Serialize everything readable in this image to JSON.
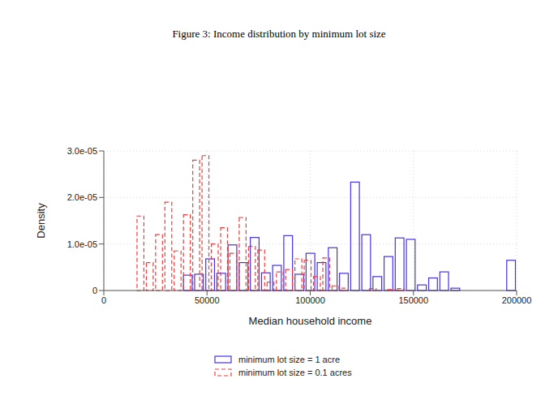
{
  "chart_data": {
    "type": "histogram",
    "title": "Figure 3: Income distribution by minimum lot size",
    "x_label": "Median household income",
    "y_label": "Density",
    "series": [
      {
        "name": "minimum lot size = 1 acre",
        "color": "#4633e0",
        "line_style": "solid",
        "bins": [
          38000,
          43400,
          48800,
          54200,
          59600,
          65000,
          70400,
          75800,
          81200,
          86600,
          92000,
          97400,
          102800,
          108200,
          113600,
          119000,
          124400,
          129800,
          135200,
          140600,
          146000,
          151400,
          156800,
          162200,
          167600,
          173000,
          178400,
          183800,
          189200,
          194600,
          200000
        ],
        "values": [
          3.3e-06,
          3.5e-06,
          6.8e-06,
          3.7e-06,
          9.8e-06,
          6e-06,
          1.14e-05,
          3.8e-06,
          5.4e-06,
          1.18e-05,
          3.5e-06,
          8e-06,
          6e-06,
          9.2e-06,
          3.7e-06,
          2.33e-05,
          1.2e-05,
          3e-06,
          7.3e-06,
          1.13e-05,
          1.1e-05,
          1.2e-06,
          2.7e-06,
          4e-06,
          5e-07,
          0,
          0,
          0,
          0,
          6.5e-06
        ]
      },
      {
        "name": "minimum lot size = 0.1 acres",
        "color": "#f03c3c",
        "line_style": "dashed",
        "bins": [
          15500,
          20000,
          24500,
          29000,
          33500,
          38000,
          42500,
          47000,
          51500,
          56000,
          60500,
          65000,
          69500,
          74000,
          78500,
          83000,
          87500,
          92000,
          96500,
          101000,
          105500,
          110000,
          114500,
          119000,
          123500,
          128000,
          132500,
          137000,
          141500,
          146000,
          150500
        ],
        "values": [
          1.6e-05,
          6e-06,
          1.2e-05,
          1.9e-05,
          8.5e-06,
          1.63e-05,
          2.8e-05,
          2.9e-05,
          1e-05,
          1.35e-05,
          8e-06,
          1.57e-05,
          9.5e-06,
          8.7e-06,
          1.8e-06,
          4e-06,
          4.5e-06,
          6.8e-06,
          6.5e-06,
          3e-06,
          7e-06,
          1e-06,
          5e-07,
          0,
          0,
          4e-07,
          0,
          2e-07,
          4e-07,
          0
        ]
      }
    ],
    "xlim": [
      0,
      200000
    ],
    "xticks": [
      0,
      50000,
      100000,
      150000,
      200000
    ],
    "ylim": [
      0,
      3e-05
    ],
    "yticks": [
      0,
      {
        "value": 1e-05,
        "label": "1.0e-05"
      },
      {
        "value": 2e-05,
        "label": "2.0e-05"
      },
      {
        "value": 3e-05,
        "label": "3.0e-05"
      }
    ],
    "grid": true,
    "legend": "bottom"
  }
}
